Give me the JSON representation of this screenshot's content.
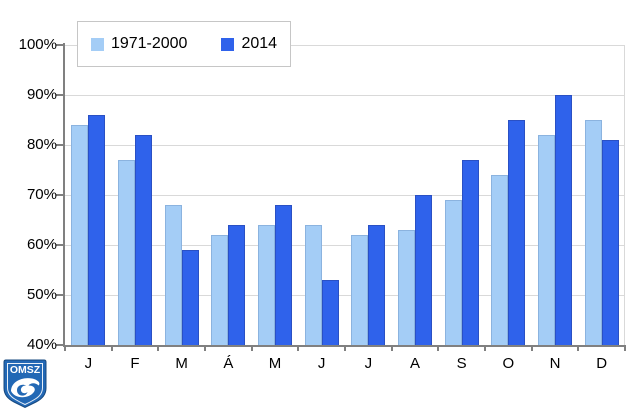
{
  "chart_data": {
    "type": "bar",
    "categories": [
      "J",
      "F",
      "M",
      "Á",
      "M",
      "J",
      "J",
      "A",
      "S",
      "O",
      "N",
      "D"
    ],
    "series": [
      {
        "name": "1971-2000",
        "color": "#A4CDF6",
        "border_color": "#8BB3DF",
        "values": [
          84,
          77,
          68,
          62,
          64,
          64,
          62,
          63,
          69,
          74,
          82,
          85
        ]
      },
      {
        "name": "2014",
        "color": "#2F62EB",
        "border_color": "#2A50C4",
        "values": [
          86,
          82,
          59,
          64,
          68,
          53,
          64,
          70,
          77,
          85,
          90,
          81
        ]
      }
    ],
    "ylim": [
      40,
      100
    ],
    "y_tick_step": 10,
    "y_tick_labels": [
      "100%",
      "90%",
      "80%",
      "70%",
      "60%",
      "50%",
      "40%"
    ],
    "grid": true,
    "legend_position": "top-left"
  },
  "colors": {
    "background": "#FFFFFF",
    "gridline": "#D9D9D9",
    "axis": "#808080",
    "text": "#000000",
    "legend_border": "#C6C6C6",
    "logo_blue": "#2268B5",
    "logo_dark_blue": "#17497F"
  },
  "logo": {
    "text": "OMSZ"
  }
}
